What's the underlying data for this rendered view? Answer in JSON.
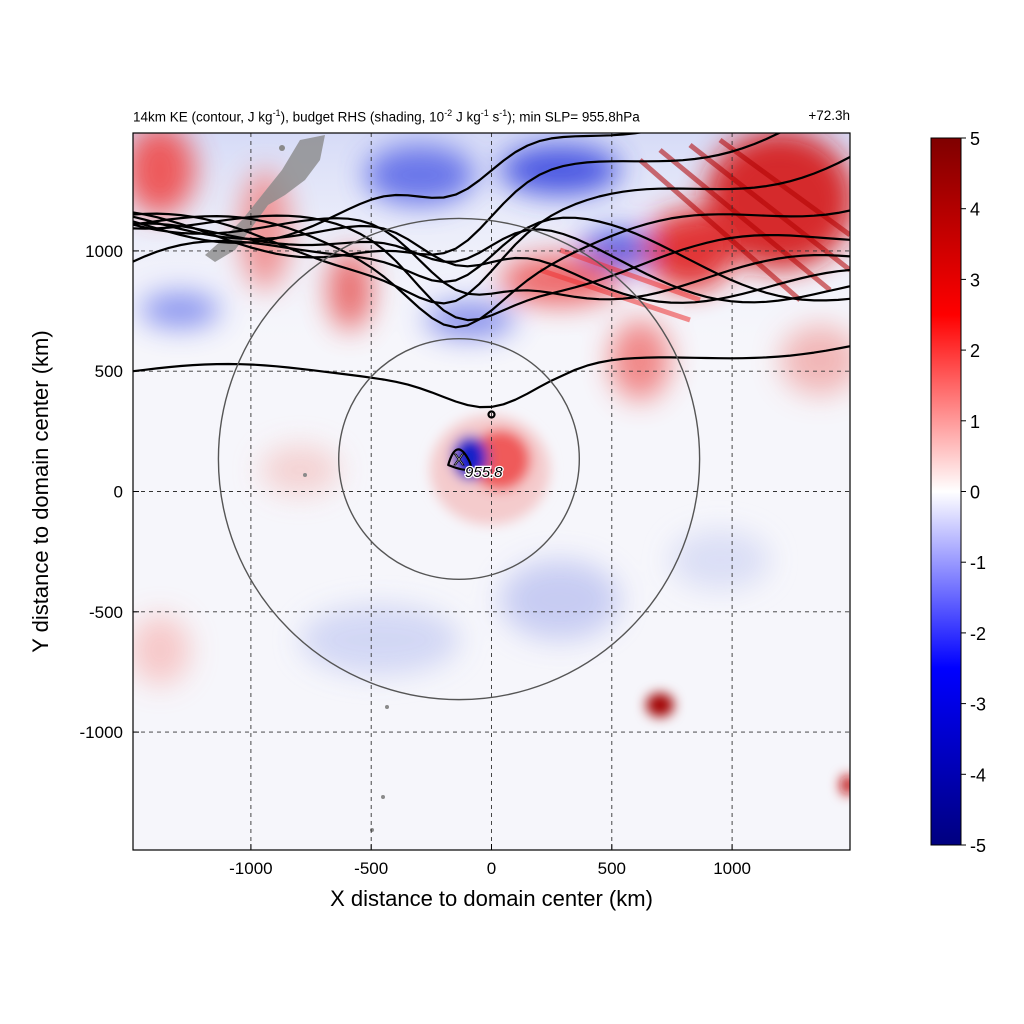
{
  "figure": {
    "title_parts": {
      "p1": "14km KE (contour, J kg",
      "s1": "-1",
      "p2": "), budget RHS (shading, 10",
      "s2": "-2",
      "p3": " J kg",
      "s3": "-1",
      "p4": " s",
      "s4": "-1",
      "p5": "); min SLP= 955.8hPa"
    },
    "time_label": "+72.3h"
  },
  "chart_data": {
    "type": "heatmap",
    "xlabel": "X distance to domain center (km)",
    "ylabel": "Y distance to domain center (km)",
    "xlim": [
      -1490,
      1490
    ],
    "ylim": [
      -1490,
      1490
    ],
    "xticks": [
      -1000,
      -500,
      0,
      500,
      1000
    ],
    "xtick_labels": [
      "-1000",
      "-500",
      "0",
      "500",
      "1000"
    ],
    "yticks": [
      -1000,
      -500,
      0,
      500,
      1000
    ],
    "ytick_labels": [
      "-1000",
      "-500",
      "0",
      "500",
      "1000"
    ],
    "grid": true,
    "grid_style": "dashed",
    "colorbar": {
      "min": -5,
      "max": 5,
      "ticks": [
        5,
        4,
        3,
        2,
        1,
        0,
        -1,
        -2,
        -3,
        -4,
        -5
      ],
      "tick_labels": [
        "5",
        "4",
        "3",
        "2",
        "1",
        "0",
        "-1",
        "-2",
        "-3",
        "-4",
        "-5"
      ],
      "colors": [
        "#00007f",
        "#0000ff",
        "#ffffff",
        "#ff0000",
        "#7f0000"
      ]
    },
    "storm_center": {
      "x": -135,
      "y": 135,
      "marker": "X",
      "label": "955.8"
    },
    "range_circles_km": [
      {
        "cx": -135,
        "cy": 135,
        "r": 500
      },
      {
        "cx": -135,
        "cy": 135,
        "r": 1000
      }
    ],
    "ke_contours_y_at_left": [
      500,
      760,
      820,
      880,
      950,
      1030,
      1100,
      1180,
      1260,
      1330
    ]
  }
}
